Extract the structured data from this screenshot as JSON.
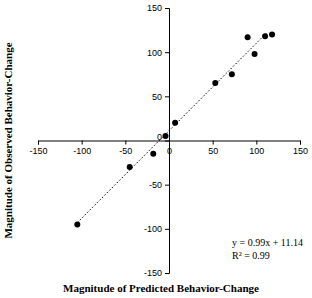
{
  "chart_data": {
    "type": "scatter",
    "x_label": "Magnitude of Predicted Behavior-Change",
    "y_label": "Magnitude of Observed Behavior-Change",
    "xlim": [
      -150,
      150
    ],
    "ylim": [
      -150,
      150
    ],
    "xticks": [
      -150,
      -100,
      -50,
      0,
      50,
      100,
      150
    ],
    "yticks": [
      -150,
      -100,
      -50,
      0,
      50,
      100,
      150
    ],
    "grid": false,
    "series": [
      {
        "type": "scatter",
        "marker": "circle",
        "color": "#000000",
        "x": [
          -105,
          -45,
          -18,
          -4,
          7,
          53,
          72,
          90,
          98,
          110,
          118
        ],
        "values": [
          -95,
          -30,
          -15,
          5,
          20,
          65,
          75,
          117,
          98,
          118,
          120
        ]
      },
      {
        "type": "line",
        "line_style": "dotted",
        "color": "#000000",
        "x": [
          -105,
          112
        ],
        "values": [
          -93,
          122
        ]
      }
    ],
    "annotations": [
      {
        "text": "y = 0.99x + 11.14"
      },
      {
        "text": "R² = 0.99"
      }
    ]
  }
}
